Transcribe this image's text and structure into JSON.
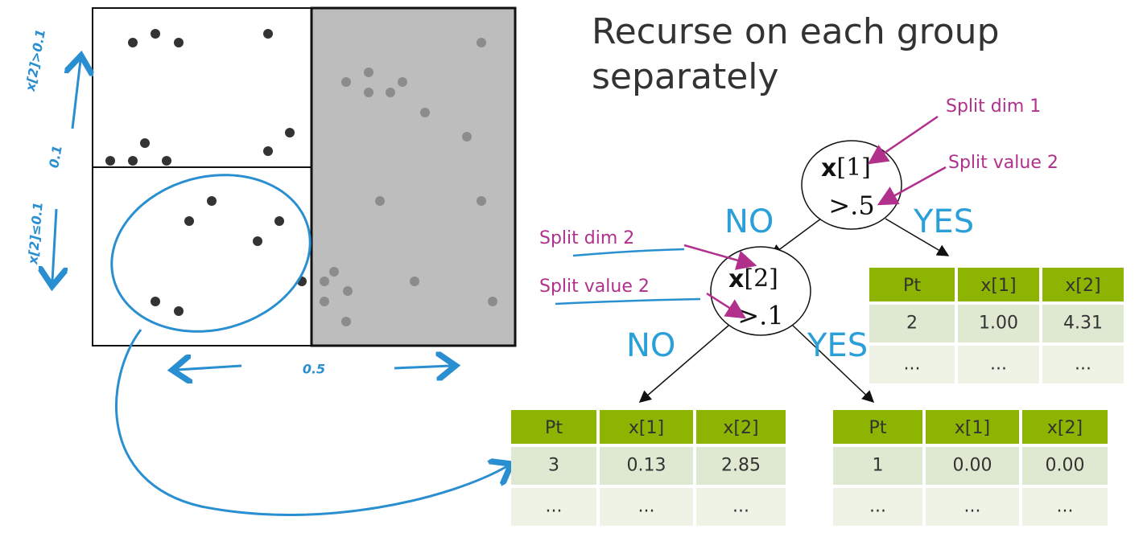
{
  "title": [
    "Recurse on each group",
    "separately"
  ],
  "handwriting": {
    "upper": "x[2]>0.1",
    "lower": "x[2]≤0.1",
    "split_y": "0.1",
    "split_x": "0.5"
  },
  "nodes": [
    {
      "var": "x",
      "index": "[1]",
      "test": ">.5"
    },
    {
      "var": "x",
      "index": "[2]",
      "test": ">.1"
    }
  ],
  "edges": [
    "NO",
    "YES",
    "NO",
    "YES"
  ],
  "annotations": [
    "Split dim 1",
    "Split value 2",
    "Split dim 2",
    "Split value 2"
  ],
  "tables": [
    {
      "header": [
        "Pt",
        "x[1]",
        "x[2]"
      ],
      "rows": [
        [
          "2",
          "1.00",
          "4.31"
        ],
        [
          "...",
          "...",
          "..."
        ]
      ]
    },
    {
      "header": [
        "Pt",
        "x[1]",
        "x[2]"
      ],
      "rows": [
        [
          "3",
          "0.13",
          "2.85"
        ],
        [
          "...",
          "...",
          "..."
        ]
      ]
    },
    {
      "header": [
        "Pt",
        "x[1]",
        "x[2]"
      ],
      "rows": [
        [
          "1",
          "0.00",
          "0.00"
        ],
        [
          "...",
          "...",
          "..."
        ]
      ]
    }
  ]
}
